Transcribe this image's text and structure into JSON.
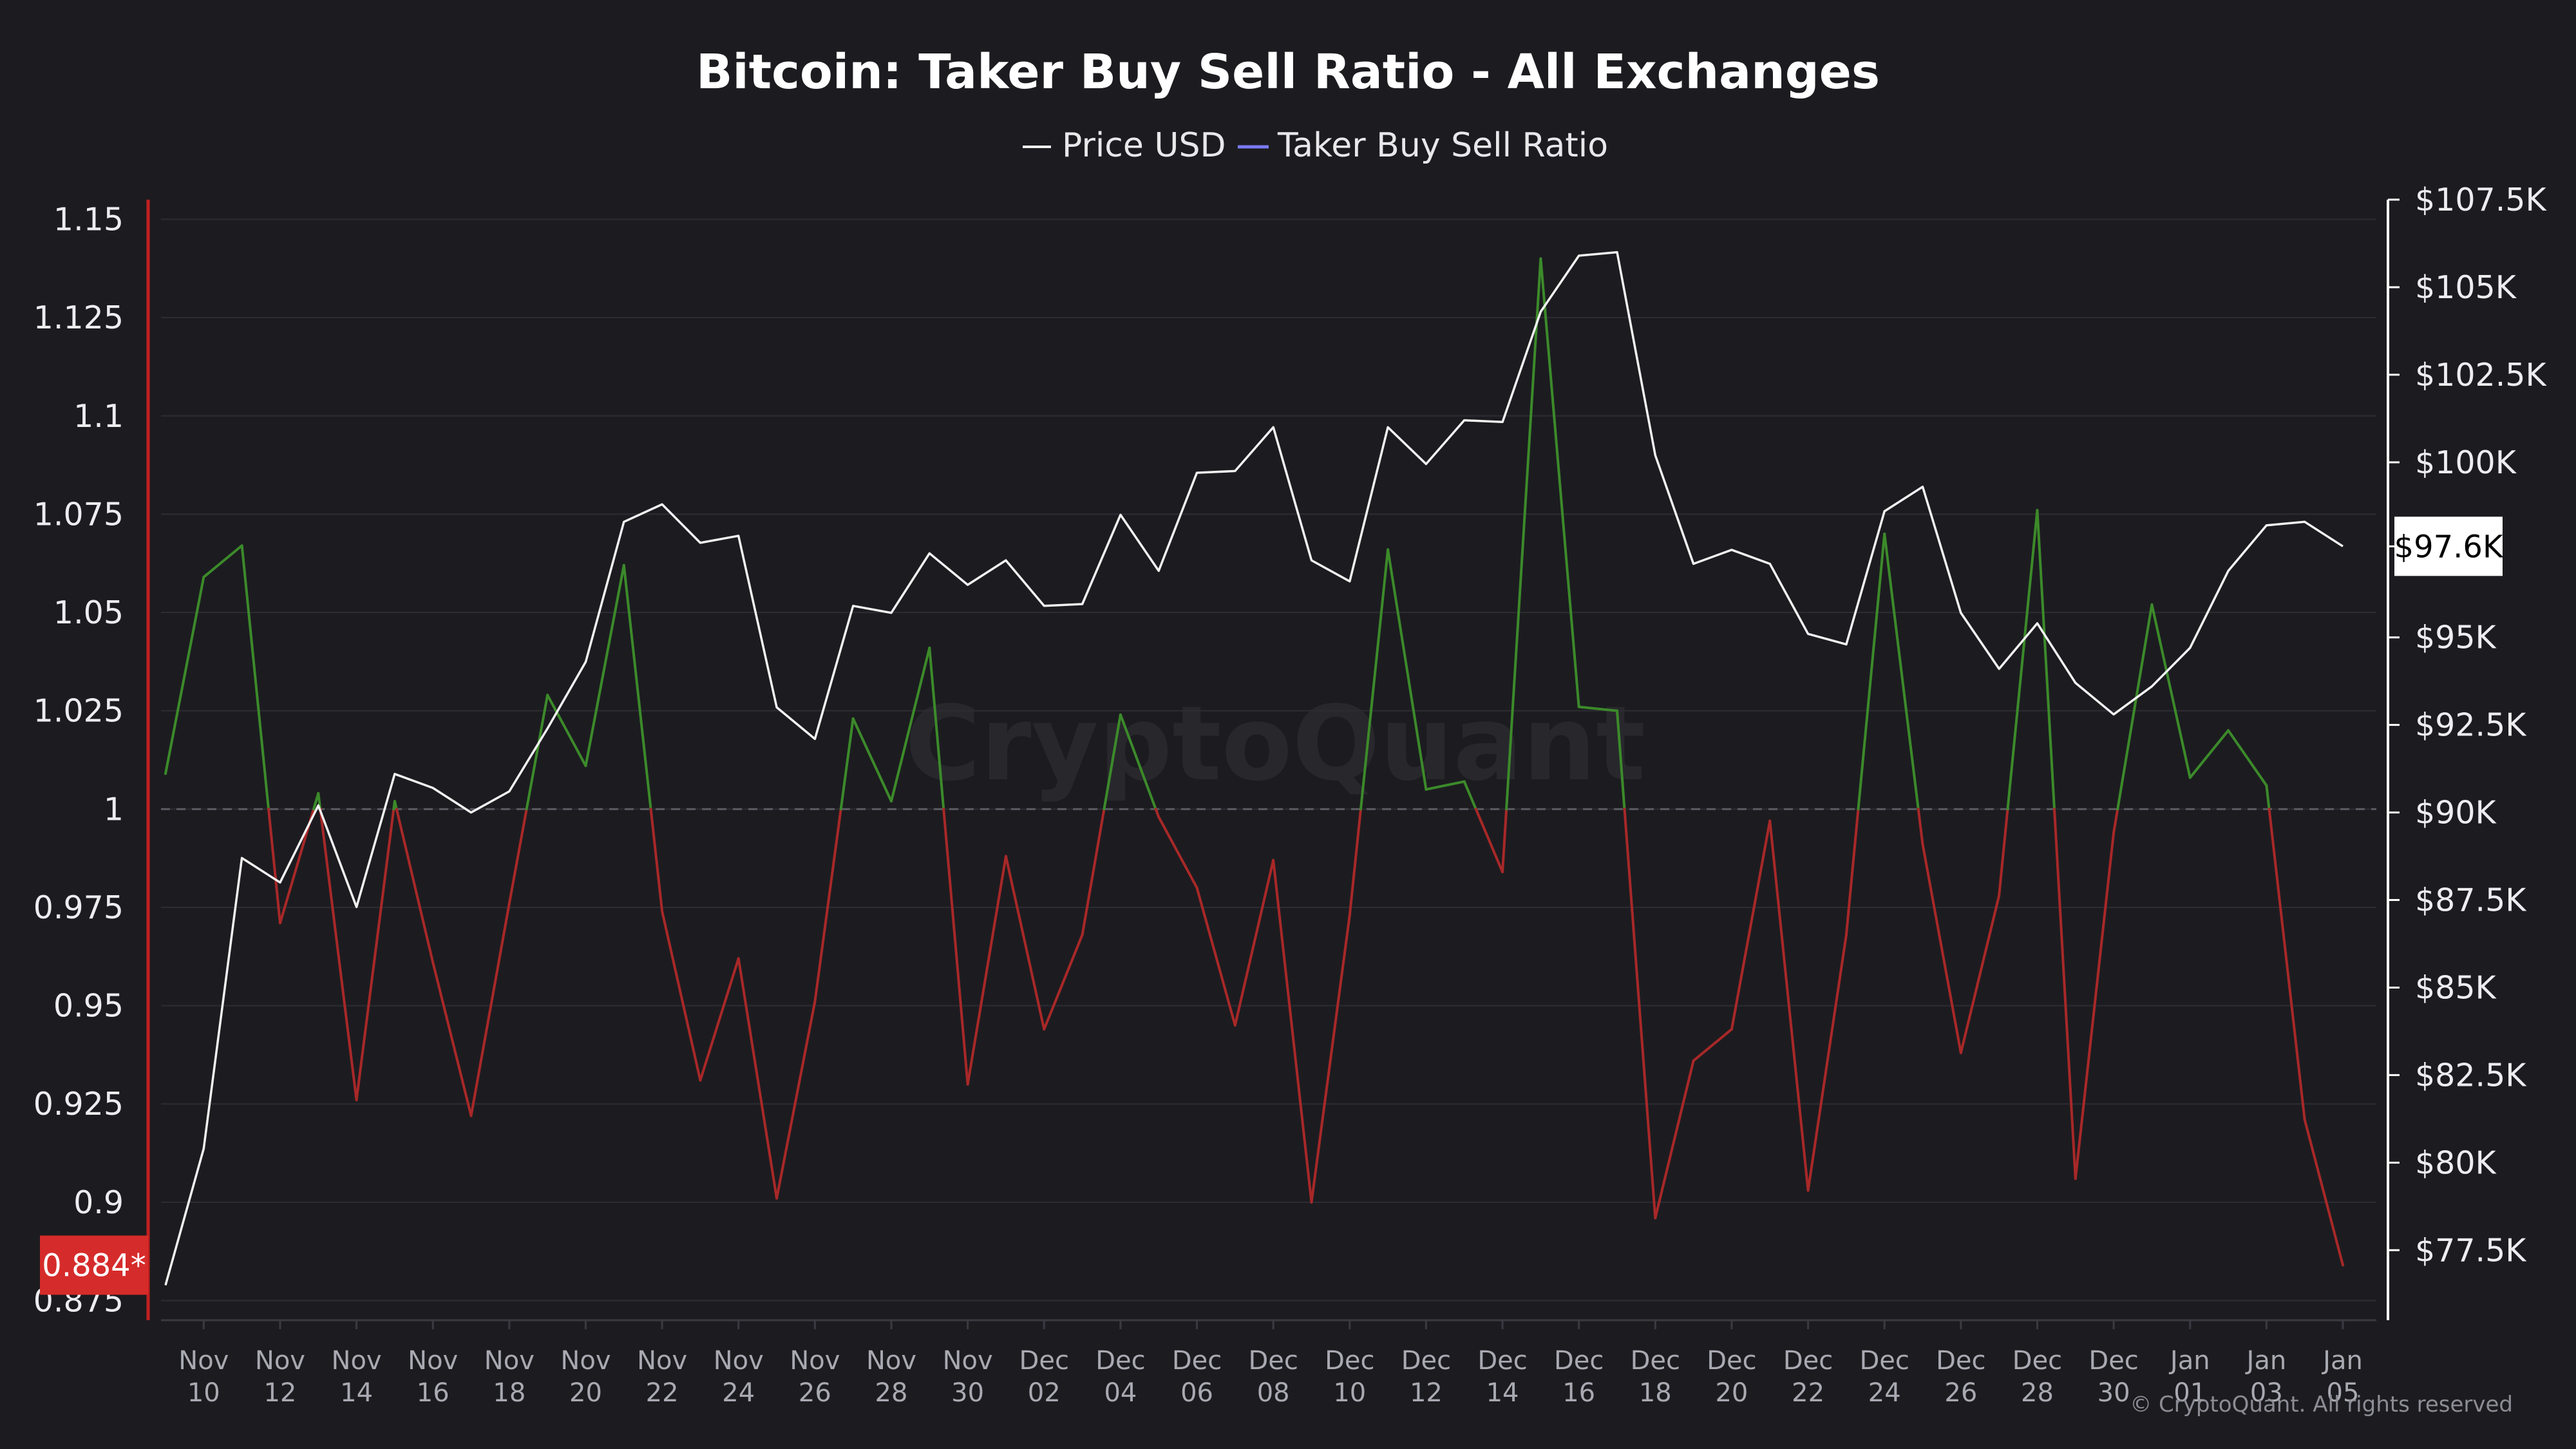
{
  "chart_data": {
    "type": "line",
    "title": "Bitcoin: Taker Buy Sell Ratio - All Exchanges",
    "legend": [
      {
        "name": "Price USD",
        "color": "#f2f2f2"
      },
      {
        "name": "Taker Buy Sell Ratio",
        "color": "#7b7bf5"
      }
    ],
    "legend_position": "top-center",
    "x_tick_labels": [
      [
        "Nov",
        "10"
      ],
      [
        "Nov",
        "12"
      ],
      [
        "Nov",
        "14"
      ],
      [
        "Nov",
        "16"
      ],
      [
        "Nov",
        "18"
      ],
      [
        "Nov",
        "20"
      ],
      [
        "Nov",
        "22"
      ],
      [
        "Nov",
        "24"
      ],
      [
        "Nov",
        "26"
      ],
      [
        "Nov",
        "28"
      ],
      [
        "Nov",
        "30"
      ],
      [
        "Dec",
        "02"
      ],
      [
        "Dec",
        "04"
      ],
      [
        "Dec",
        "06"
      ],
      [
        "Dec",
        "08"
      ],
      [
        "Dec",
        "10"
      ],
      [
        "Dec",
        "12"
      ],
      [
        "Dec",
        "14"
      ],
      [
        "Dec",
        "16"
      ],
      [
        "Dec",
        "18"
      ],
      [
        "Dec",
        "20"
      ],
      [
        "Dec",
        "22"
      ],
      [
        "Dec",
        "24"
      ],
      [
        "Dec",
        "26"
      ],
      [
        "Dec",
        "28"
      ],
      [
        "Dec",
        "30"
      ],
      [
        "Jan",
        "01"
      ],
      [
        "Jan",
        "03"
      ],
      [
        "Jan",
        "05"
      ]
    ],
    "x": [
      "2024-11-09",
      "2024-11-10",
      "2024-11-11",
      "2024-11-12",
      "2024-11-13",
      "2024-11-14",
      "2024-11-15",
      "2024-11-16",
      "2024-11-17",
      "2024-11-18",
      "2024-11-19",
      "2024-11-20",
      "2024-11-21",
      "2024-11-22",
      "2024-11-23",
      "2024-11-24",
      "2024-11-25",
      "2024-11-26",
      "2024-11-27",
      "2024-11-28",
      "2024-11-29",
      "2024-11-30",
      "2024-12-01",
      "2024-12-02",
      "2024-12-03",
      "2024-12-04",
      "2024-12-05",
      "2024-12-06",
      "2024-12-07",
      "2024-12-08",
      "2024-12-09",
      "2024-12-10",
      "2024-12-11",
      "2024-12-12",
      "2024-12-13",
      "2024-12-14",
      "2024-12-15",
      "2024-12-16",
      "2024-12-17",
      "2024-12-18",
      "2024-12-19",
      "2024-12-20",
      "2024-12-21",
      "2024-12-22",
      "2024-12-23",
      "2024-12-24",
      "2024-12-25",
      "2024-12-26",
      "2024-12-27",
      "2024-12-28",
      "2024-12-29",
      "2024-12-30",
      "2024-12-31",
      "2025-01-01",
      "2025-01-02",
      "2025-01-03",
      "2025-01-04",
      "2025-01-05"
    ],
    "series": [
      {
        "name": "Taker Buy Sell Ratio",
        "axis": "left",
        "color_above_1": "#3c8a2a",
        "color_below_1": "#a82828",
        "values": [
          1.009,
          1.059,
          1.067,
          0.971,
          1.004,
          0.926,
          1.002,
          0.961,
          0.922,
          0.976,
          1.029,
          1.011,
          1.062,
          0.974,
          0.931,
          0.962,
          0.901,
          0.951,
          1.023,
          1.002,
          1.041,
          0.93,
          0.988,
          0.944,
          0.968,
          1.024,
          0.998,
          0.98,
          0.945,
          0.987,
          0.9,
          0.973,
          1.066,
          1.005,
          1.007,
          0.984,
          1.14,
          1.026,
          1.025,
          0.896,
          0.936,
          0.944,
          0.997,
          0.903,
          0.968,
          1.07,
          0.991,
          0.938,
          0.978,
          1.076,
          0.906,
          0.994,
          1.052,
          1.008,
          1.02,
          1.006,
          0.921,
          0.884
        ]
      },
      {
        "name": "Price USD",
        "axis": "right",
        "color": "#f2f2f2",
        "values": [
          76500,
          80400,
          88700,
          88000,
          90200,
          87300,
          91100,
          90700,
          90000,
          90600,
          92400,
          94300,
          98300,
          98800,
          97700,
          97900,
          93000,
          92100,
          95900,
          95700,
          97400,
          96500,
          97200,
          95900,
          95950,
          98500,
          96900,
          99700,
          99750,
          101000,
          97200,
          96600,
          101000,
          99950,
          101200,
          101150,
          104300,
          105900,
          106000,
          100200,
          97100,
          97500,
          97100,
          95100,
          94800,
          98600,
          99300,
          95700,
          94100,
          95400,
          93700,
          92800,
          93600,
          94700,
          96900,
          98200,
          98300,
          97600
        ]
      }
    ],
    "y_left": {
      "ticks": [
        "1.15",
        "1.125",
        "1.1",
        "1.075",
        "1.05",
        "1.025",
        "1",
        "0.975",
        "0.95",
        "0.925",
        "0.9",
        "0.875"
      ],
      "range": [
        0.87,
        1.155
      ],
      "reference_line": 1,
      "current_value_label": "0.884*",
      "badge_color": "#d62b2b"
    },
    "y_right": {
      "ticks": [
        "$107.5K",
        "$105K",
        "$102.5K",
        "$100K",
        "$97.6K",
        "$95K",
        "$92.5K",
        "$90K",
        "$87.5K",
        "$85K",
        "$82.5K",
        "$80K",
        "$77.5K"
      ],
      "tick_values": [
        107500,
        105000,
        102500,
        100000,
        97600,
        95000,
        92500,
        90000,
        87500,
        85000,
        82500,
        80000,
        77500
      ],
      "range": [
        75500,
        107500
      ],
      "current_value_label": "$97.6K",
      "badge_color": "#ffffff"
    },
    "grid": true,
    "watermark": "CryptoQuant",
    "copyright": "© CryptoQuant. All rights reserved"
  }
}
